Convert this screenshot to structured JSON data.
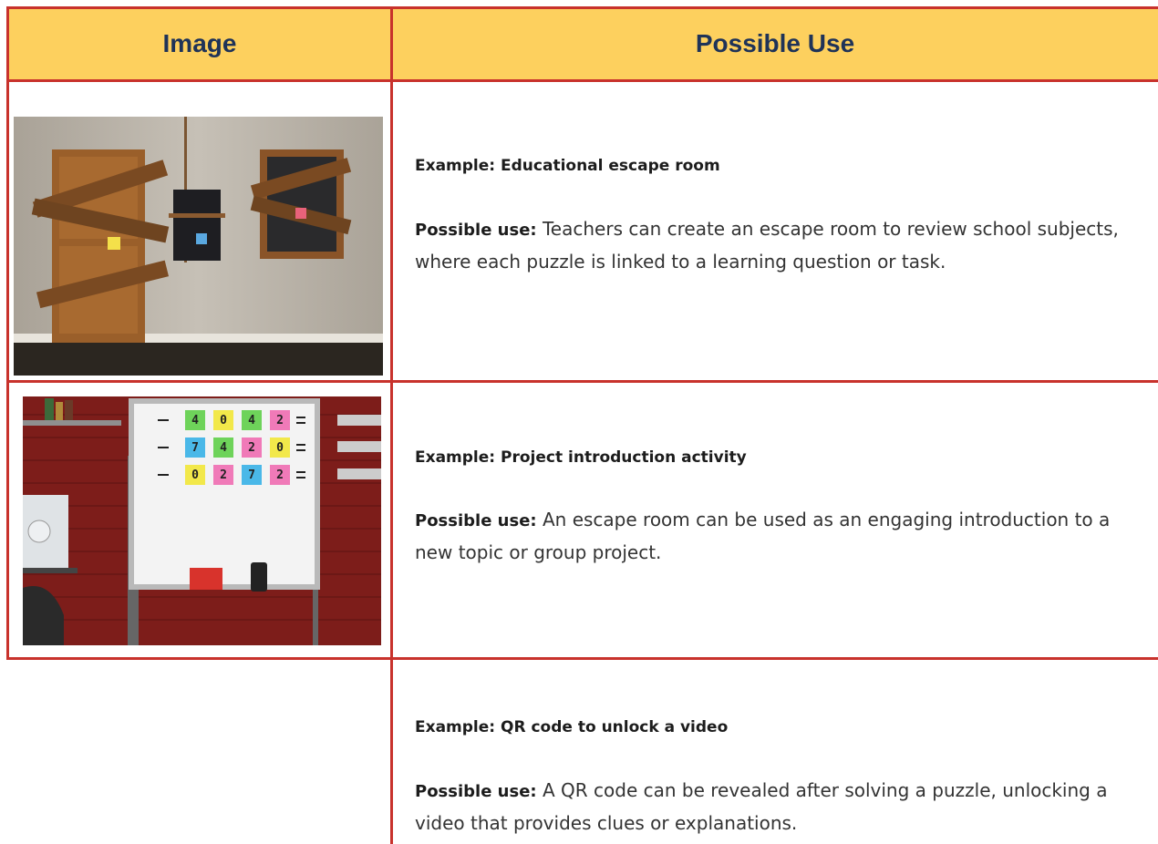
{
  "table": {
    "header": [
      "Image",
      "Possible Use"
    ],
    "rows": [
      {
        "example": "Example: Educational escape room",
        "label": "Possible use:",
        "text": "Teachers can create an escape room to review school subjects, where each puzzle is linked to a learning question or task."
      },
      {
        "example": "Example: Project introduction activity",
        "label": "Possible use:",
        "text": "An escape room can be used as an engaging introduction to a new topic or group project.",
        "notes": [
          [
            "4",
            "0",
            "4",
            "2"
          ],
          [
            "7",
            "4",
            "2",
            "0"
          ],
          [
            "0",
            "2",
            "7",
            "2"
          ]
        ]
      },
      {
        "example": "Example: QR code to unlock a video",
        "label": "Possible use:",
        "text": "A QR code can be revealed after solving a puzzle, unlocking a video that provides clues or explanations."
      }
    ]
  }
}
